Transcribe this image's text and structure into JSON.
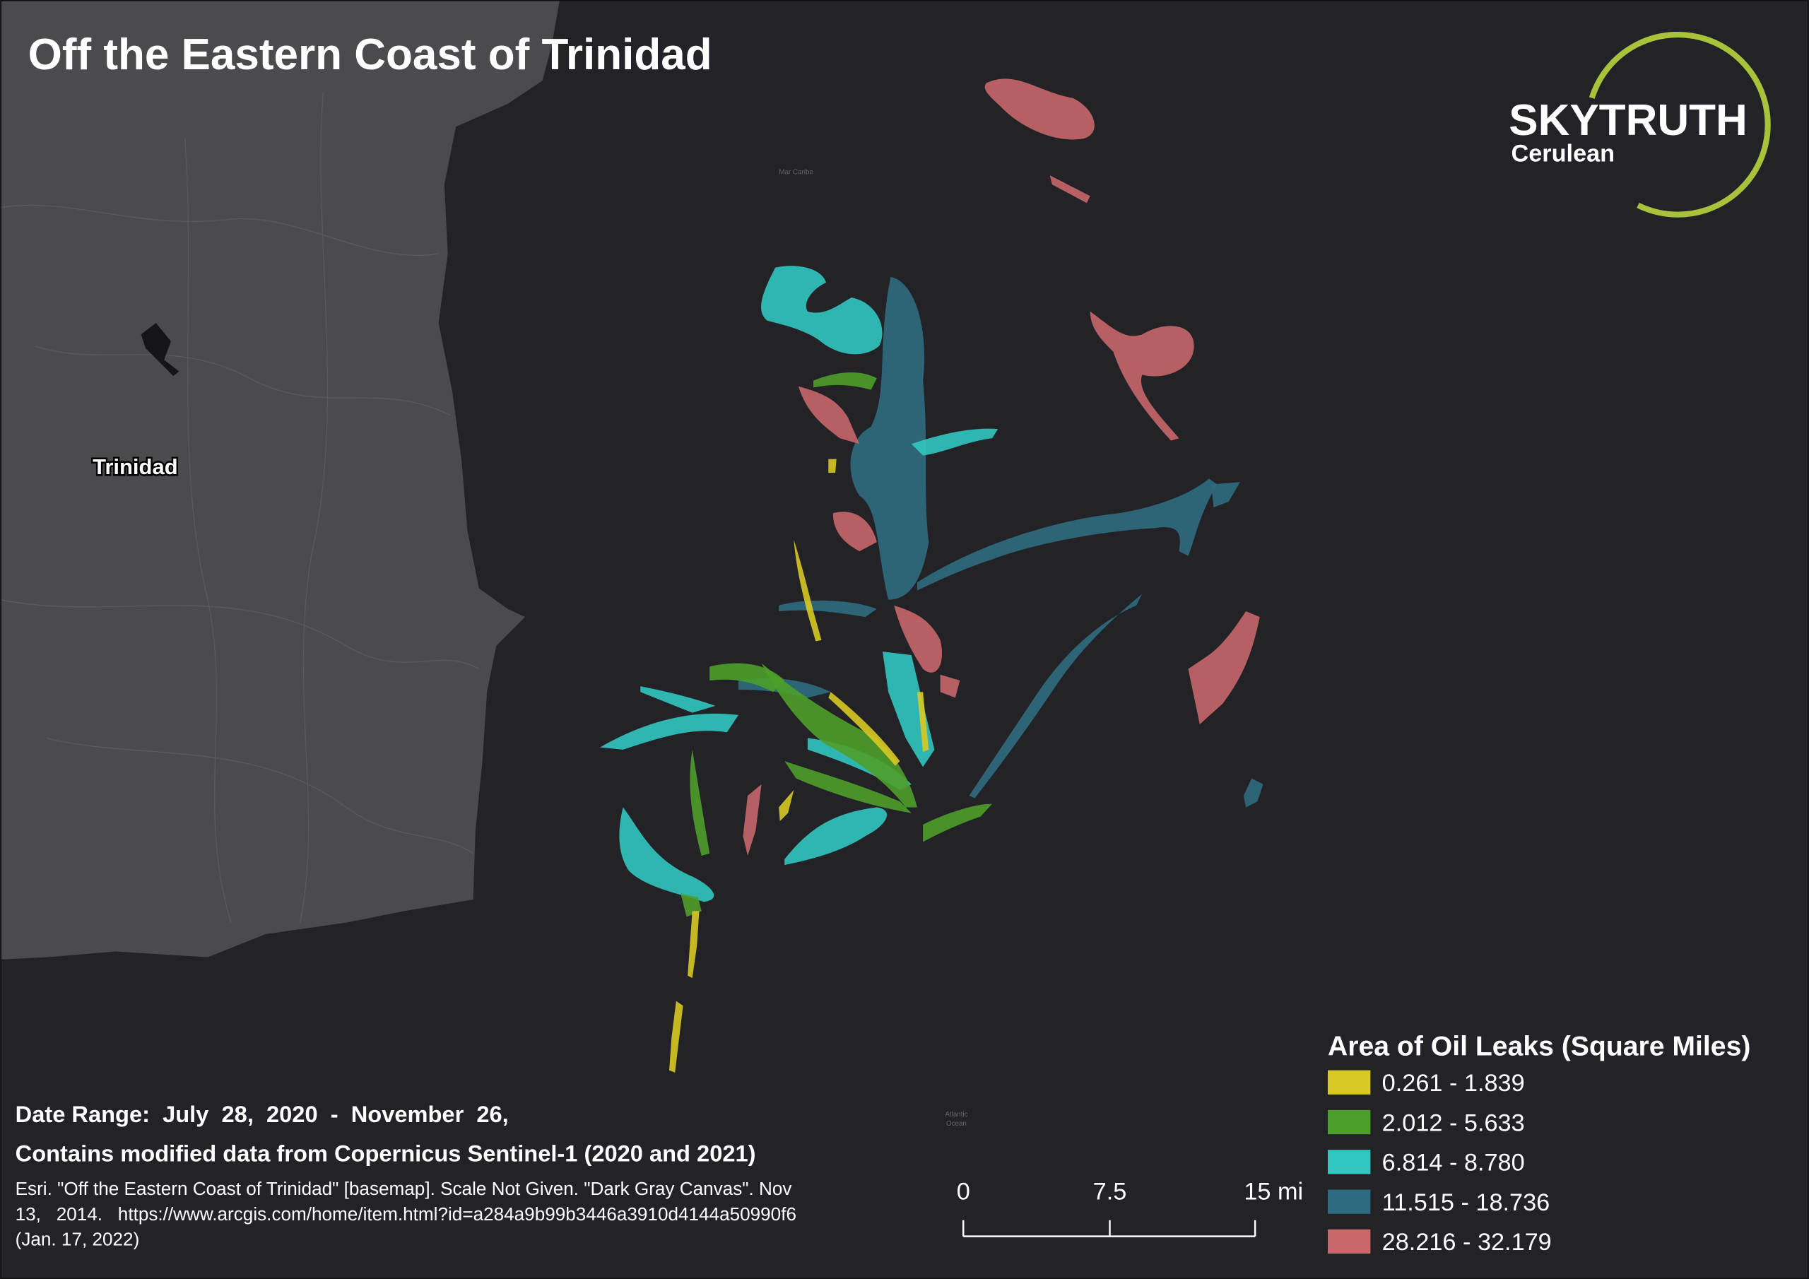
{
  "header": {
    "title": "Off the Eastern Coast of Trinidad"
  },
  "logo": {
    "name": "SKYTRUTH",
    "subtitle": "Cerulean",
    "ring_color": "#a8c23a"
  },
  "map": {
    "land_label": "Trinidad",
    "sea_labels": [
      "Mar Caribe",
      "Atlantic",
      "Ocean"
    ],
    "land_color": "#4b4b4e",
    "sea_color": "#232327"
  },
  "legend": {
    "title": "Area of Oil Leaks (Square Miles)",
    "items": [
      {
        "label": "0.261 - 1.839",
        "color": "#d8c924"
      },
      {
        "label": "2.012 - 5.633",
        "color": "#4d9e2a"
      },
      {
        "label": "6.814 - 8.780",
        "color": "#32c6c1"
      },
      {
        "label": "11.515 - 18.736",
        "color": "#2f6b80"
      },
      {
        "label": "28.216 - 32.179",
        "color": "#c8676c"
      }
    ]
  },
  "scale_bar": {
    "labels": [
      "0",
      "7.5",
      "15 mi"
    ]
  },
  "footer": {
    "date_range": "Date Range:  July  28,  2020  -  November  26,",
    "source": "Contains modified data from Copernicus Sentinel-1 (2020 and 2021)",
    "citation": [
      "Esri. \"Off the Eastern Coast of Trinidad\" [basemap]. Scale Not Given. \"Dark Gray Canvas\". Nov",
      "13,   2014.   https://www.arcgis.com/home/item.html?id=a284a9b99b3446a3910d4144a50990f6",
      "(Jan. 17, 2022)"
    ]
  }
}
